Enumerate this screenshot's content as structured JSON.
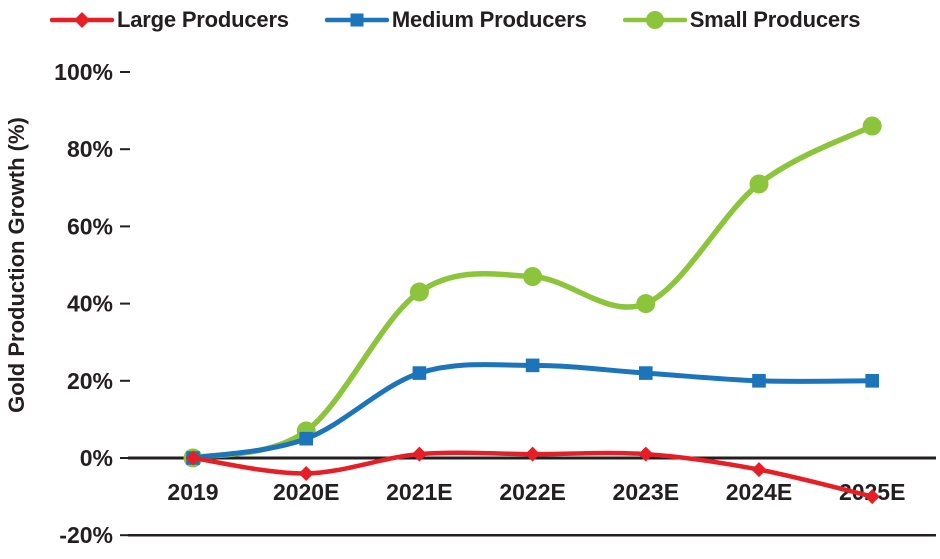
{
  "chart_data": {
    "type": "line",
    "title": "",
    "ylabel": "Gold Production Growth (%)",
    "xlabel": "",
    "x": [
      "2019",
      "2020E",
      "2021E",
      "2022E",
      "2023E",
      "2024E",
      "2025E"
    ],
    "series": [
      {
        "name": "Large Producers",
        "color": "#E61E25",
        "marker": "diamond",
        "values": [
          0,
          -4,
          1,
          1,
          1,
          -3,
          -10
        ]
      },
      {
        "name": "Medium Producers",
        "color": "#1C75BB",
        "marker": "square",
        "values": [
          0,
          5,
          22,
          24,
          22,
          20,
          20
        ]
      },
      {
        "name": "Small Producers",
        "color": "#8CC43C",
        "marker": "circle",
        "values": [
          0,
          7,
          43,
          47,
          40,
          71,
          86
        ]
      }
    ],
    "ylim": [
      -20,
      100
    ],
    "yticks": [
      {
        "value": 100,
        "label": "100%"
      },
      {
        "value": 80,
        "label": "80%"
      },
      {
        "value": 60,
        "label": "60%"
      },
      {
        "value": 40,
        "label": "40%"
      },
      {
        "value": 20,
        "label": "20%"
      },
      {
        "value": 0,
        "label": "0%"
      },
      {
        "value": -20,
        "label": "-20%"
      }
    ],
    "grid": false,
    "legend_position": "top"
  },
  "colors": {
    "text": "#231F20",
    "axis": "#231F20",
    "background": "#FFFFFF"
  }
}
